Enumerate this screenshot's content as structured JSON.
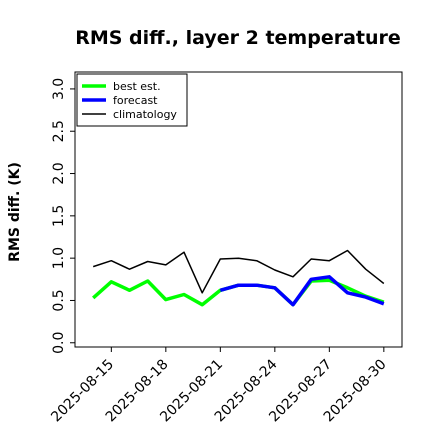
{
  "chart_data": {
    "type": "line",
    "title": "RMS diff., layer 2 temperature",
    "xlabel": "",
    "ylabel": "RMS diff. (K)",
    "x": [
      "2025-08-14",
      "2025-08-15",
      "2025-08-16",
      "2025-08-17",
      "2025-08-18",
      "2025-08-19",
      "2025-08-20",
      "2025-08-21",
      "2025-08-22",
      "2025-08-23",
      "2025-08-24",
      "2025-08-25",
      "2025-08-26",
      "2025-08-27",
      "2025-08-28",
      "2025-08-29",
      "2025-08-30"
    ],
    "xlim": [
      "2025-08-13",
      "2025-08-31"
    ],
    "ylim": [
      -0.05,
      3.2
    ],
    "yticks": [
      0.0,
      0.5,
      1.0,
      1.5,
      2.0,
      2.5,
      3.0
    ],
    "ytick_labels": [
      "0.0",
      "0.5",
      "1.0",
      "1.5",
      "2.0",
      "2.5",
      "3.0"
    ],
    "xticks": [
      "2025-08-15",
      "2025-08-18",
      "2025-08-21",
      "2025-08-24",
      "2025-08-27",
      "2025-08-30"
    ],
    "xtick_labels": [
      "2025-08-15",
      "2025-08-18",
      "2025-08-21",
      "2025-08-24",
      "2025-08-27",
      "2025-08-30"
    ],
    "highlighted_xtick": "2025-08-21",
    "highlight_color": "#228b22",
    "legend_position": "top-left",
    "series": [
      {
        "name": "best est.",
        "color": "#00ff00",
        "width": 3.5,
        "values": [
          0.53,
          0.72,
          0.62,
          0.73,
          0.51,
          0.57,
          0.45,
          0.62,
          0.68,
          0.68,
          0.65,
          0.45,
          0.73,
          0.74,
          0.65,
          0.55,
          0.48
        ]
      },
      {
        "name": "forecast",
        "color": "#0000ff",
        "width": 3.5,
        "values": [
          null,
          null,
          null,
          null,
          null,
          null,
          null,
          0.62,
          0.68,
          0.68,
          0.65,
          0.45,
          0.75,
          0.78,
          0.59,
          0.54,
          0.46
        ]
      },
      {
        "name": "climatology",
        "color": "#000000",
        "width": 1.5,
        "values": [
          0.9,
          0.97,
          0.87,
          0.96,
          0.92,
          1.07,
          0.59,
          0.99,
          1.0,
          0.97,
          0.86,
          0.78,
          0.99,
          0.97,
          1.09,
          0.87,
          0.7
        ]
      }
    ]
  }
}
